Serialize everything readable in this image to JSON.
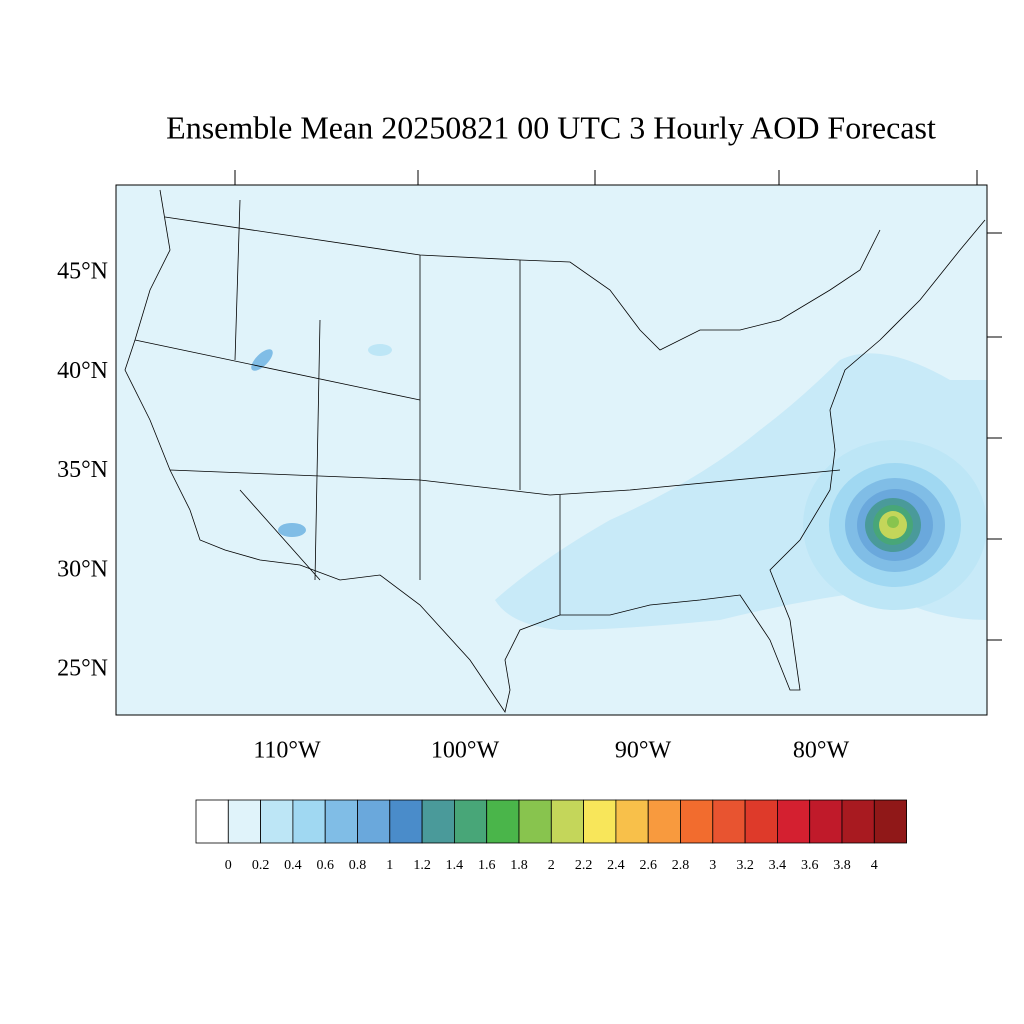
{
  "map": {
    "title": "Ensemble Mean 20250821 00 UTC 3 Hourly AOD Forecast",
    "lat_labels": [
      "45°N",
      "40°N",
      "35°N",
      "30°N",
      "25°N"
    ],
    "lon_labels": [
      "110°W",
      "100°W",
      "90°W",
      "80°W"
    ],
    "colorbar": {
      "levels": [
        0,
        0.2,
        0.4,
        0.6,
        0.8,
        1,
        1.2,
        1.4,
        1.6,
        1.8,
        2,
        2.2,
        2.4,
        2.6,
        2.8,
        3,
        3.2,
        3.4,
        3.6,
        3.8,
        4
      ],
      "colors": [
        "#ffffff",
        "#e0f3fa",
        "#bde6f6",
        "#a0d8f2",
        "#80bde6",
        "#6aa8dc",
        "#4a8cca",
        "#4a9a9a",
        "#48a678",
        "#4ab54a",
        "#88c44e",
        "#c4d65a",
        "#f8e65a",
        "#f8c04a",
        "#f89a3e",
        "#f26c2e",
        "#e85430",
        "#de3a2a",
        "#d42030",
        "#c01a2a",
        "#a81a20",
        "#901818"
      ]
    }
  }
}
